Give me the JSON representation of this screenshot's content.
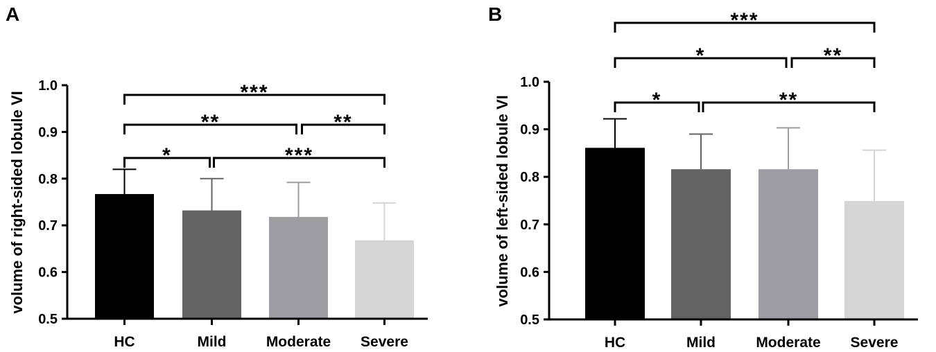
{
  "chart_data": [
    {
      "type": "bar",
      "panel": "A",
      "ylabel": "volume of right-sided lobule VI",
      "xlabel": "",
      "ylim": [
        0.5,
        1.0
      ],
      "yticks": [
        "0.5",
        "0.6",
        "0.7",
        "0.8",
        "0.9",
        "1.0"
      ],
      "categories": [
        "HC",
        "Mild",
        "Moderate",
        "Severe"
      ],
      "values": [
        0.767,
        0.732,
        0.718,
        0.668
      ],
      "errors": [
        0.053,
        0.068,
        0.074,
        0.08
      ],
      "colors": [
        "#000000",
        "#636363",
        "#9e9ea2",
        "#d5d5d5"
      ],
      "errorbar_colors": [
        "#000000",
        "#636363",
        "#9e9ea2",
        "#d5d5d5"
      ],
      "significance": [
        {
          "from": "HC",
          "to": "Mild",
          "label": "*"
        },
        {
          "from": "Mild",
          "to": "Severe",
          "label": "***"
        },
        {
          "from": "HC",
          "to": "Moderate",
          "label": "**"
        },
        {
          "from": "Moderate",
          "to": "Severe",
          "label": "**"
        },
        {
          "from": "HC",
          "to": "Severe",
          "label": "***"
        }
      ]
    },
    {
      "type": "bar",
      "panel": "B",
      "ylabel": "volume of left-sided lobule VI",
      "xlabel": "",
      "ylim": [
        0.5,
        1.0
      ],
      "yticks": [
        "0.5",
        "0.6",
        "0.7",
        "0.8",
        "0.9",
        "1.0"
      ],
      "categories": [
        "HC",
        "Mild",
        "Moderate",
        "Severe"
      ],
      "values": [
        0.861,
        0.816,
        0.816,
        0.749
      ],
      "errors": [
        0.061,
        0.074,
        0.087,
        0.107
      ],
      "colors": [
        "#000000",
        "#636363",
        "#9e9ea2",
        "#d5d5d5"
      ],
      "errorbar_colors": [
        "#000000",
        "#636363",
        "#9e9ea2",
        "#d5d5d5"
      ],
      "significance": [
        {
          "from": "HC",
          "to": "Mild",
          "label": "*"
        },
        {
          "from": "Mild",
          "to": "Severe",
          "label": "**"
        },
        {
          "from": "HC",
          "to": "Moderate",
          "label": "*"
        },
        {
          "from": "Moderate",
          "to": "Severe",
          "label": "**"
        },
        {
          "from": "HC",
          "to": "Severe",
          "label": "***"
        }
      ]
    }
  ]
}
